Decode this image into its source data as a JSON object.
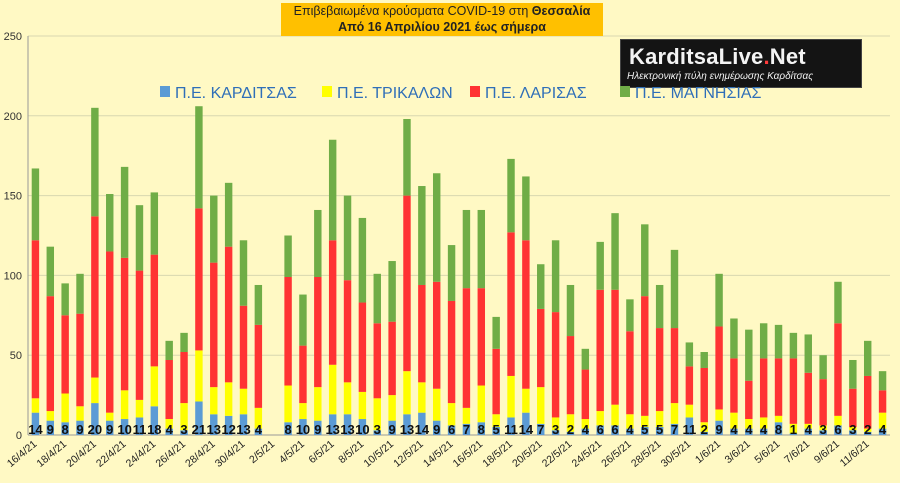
{
  "title": {
    "prefix": "Επιβεβαιωμένα κρούσματα COVID-19 στη",
    "region": "Θεσσαλία",
    "subtitle": "Από 16 Απριλίου 2021 έως σήμερα"
  },
  "logo": {
    "brand_main": "KarditsaLive",
    "brand_dot": ".",
    "brand_tld": "Net",
    "tagline": "Ηλεκτρονική πύλη ενημέρωσης Καρδίτσας"
  },
  "colors": {
    "background": "#fff9c4",
    "karditsa": "#5b9bd5",
    "trikala": "#ffff00",
    "larisa": "#ff3333",
    "magnisia": "#70ad47",
    "title_box": "#ffc000",
    "legend_text": "#2f6fb8",
    "grid": "#d8d8b0"
  },
  "chart_data": {
    "type": "bar",
    "stacked": true,
    "ylim": [
      0,
      250
    ],
    "yticks": [
      0,
      50,
      100,
      150,
      200,
      250
    ],
    "grid": true,
    "legend_position": "top",
    "xtick_labels": [
      "16/4/21",
      "18/4/21",
      "20/4/21",
      "22/4/21",
      "24/4/21",
      "26/4/21",
      "28/4/21",
      "30/4/21",
      "2/5/21",
      "4/5/21",
      "6/5/21",
      "8/5/21",
      "10/5/21",
      "12/5/21",
      "14/5/21",
      "16/5/21",
      "18/5/21",
      "20/5/21",
      "22/5/21",
      "24/5/21",
      "26/5/21",
      "28/5/21",
      "30/5/21",
      "1/6/21",
      "3/6/21",
      "5/6/21",
      "7/6/21",
      "9/6/21",
      "11/6/21"
    ],
    "categories": [
      "16/4/21",
      "17/4/21",
      "18/4/21",
      "19/4/21",
      "20/4/21",
      "21/4/21",
      "22/4/21",
      "23/4/21",
      "24/4/21",
      "25/4/21",
      "26/4/21",
      "27/4/21",
      "28/4/21",
      "29/4/21",
      "30/4/21",
      "1/5/21",
      "2/5/21",
      "3/5/21",
      "4/5/21",
      "5/5/21",
      "6/5/21",
      "7/5/21",
      "8/5/21",
      "9/5/21",
      "10/5/21",
      "11/5/21",
      "12/5/21",
      "13/5/21",
      "14/5/21",
      "15/5/21",
      "16/5/21",
      "17/5/21",
      "18/5/21",
      "19/5/21",
      "20/5/21",
      "21/5/21",
      "22/5/21",
      "23/5/21",
      "24/5/21",
      "25/5/21",
      "26/5/21",
      "27/5/21",
      "28/5/21",
      "29/5/21",
      "30/5/21",
      "31/5/21",
      "1/6/21",
      "2/6/21",
      "3/6/21",
      "4/6/21",
      "5/6/21",
      "6/6/21",
      "7/6/21",
      "8/6/21",
      "9/6/21",
      "10/6/21",
      "11/6/21",
      "12/6/21"
    ],
    "series": [
      {
        "name": "Π.Ε. ΚΑΡΔΙΤΣΑΣ",
        "labels": [
          "14",
          "9",
          "8",
          "9",
          "20",
          "9",
          "10",
          "11",
          "18",
          "4",
          "3",
          "21",
          "13",
          "12",
          "13",
          "4",
          "",
          "8",
          "10",
          "9",
          "13",
          "13",
          "10",
          "3",
          "9",
          "13",
          "14",
          "9",
          "6",
          "7",
          "8",
          "5",
          "11",
          "14",
          "7",
          "3",
          "2",
          "4",
          "6",
          "6",
          "4",
          "5",
          "5",
          "7",
          "11",
          "2",
          "9",
          "4",
          "4",
          "4",
          "8",
          "1",
          "4",
          "3",
          "6",
          "3",
          "2",
          "4"
        ],
        "values": [
          14,
          9,
          8,
          9,
          20,
          9,
          10,
          11,
          18,
          4,
          3,
          21,
          13,
          12,
          13,
          4,
          0,
          8,
          10,
          9,
          13,
          13,
          10,
          3,
          9,
          13,
          14,
          9,
          6,
          7,
          8,
          5,
          11,
          14,
          7,
          3,
          2,
          4,
          6,
          6,
          4,
          5,
          5,
          7,
          11,
          2,
          9,
          4,
          4,
          4,
          8,
          1,
          4,
          3,
          6,
          3,
          2,
          4
        ]
      },
      {
        "name": "Π.Ε. ΤΡΙΚΑΛΩΝ",
        "values": [
          9,
          6,
          18,
          9,
          16,
          5,
          18,
          11,
          25,
          6,
          17,
          32,
          17,
          21,
          16,
          13,
          0,
          23,
          10,
          21,
          31,
          20,
          17,
          20,
          16,
          27,
          19,
          20,
          14,
          10,
          23,
          8,
          26,
          15,
          23,
          8,
          11,
          6,
          9,
          13,
          9,
          7,
          10,
          13,
          8,
          6,
          7,
          10,
          6,
          7,
          4,
          6,
          3,
          3,
          6,
          2,
          2,
          10
        ]
      },
      {
        "name": "Π.Ε. ΛΑΡΙΣΑΣ",
        "values": [
          99,
          72,
          49,
          58,
          101,
          101,
          83,
          81,
          70,
          37,
          32,
          89,
          78,
          85,
          52,
          52,
          0,
          68,
          36,
          69,
          78,
          64,
          56,
          47,
          46,
          110,
          61,
          67,
          64,
          75,
          61,
          41,
          90,
          93,
          49,
          66,
          49,
          31,
          76,
          72,
          52,
          75,
          52,
          47,
          24,
          34,
          52,
          34,
          24,
          37,
          36,
          41,
          32,
          29,
          58,
          24,
          33,
          14
        ]
      },
      {
        "name": "Π.Ε. ΜΑΓΝΗΣΙΑΣ",
        "values": [
          45,
          31,
          20,
          25,
          68,
          36,
          57,
          41,
          39,
          12,
          12,
          64,
          42,
          40,
          41,
          25,
          0,
          26,
          32,
          42,
          63,
          53,
          53,
          31,
          38,
          48,
          62,
          68,
          35,
          49,
          49,
          20,
          46,
          40,
          28,
          45,
          32,
          13,
          30,
          48,
          20,
          45,
          27,
          49,
          15,
          10,
          33,
          25,
          32,
          22,
          21,
          16,
          24,
          15,
          26,
          18,
          22,
          12
        ]
      }
    ]
  }
}
